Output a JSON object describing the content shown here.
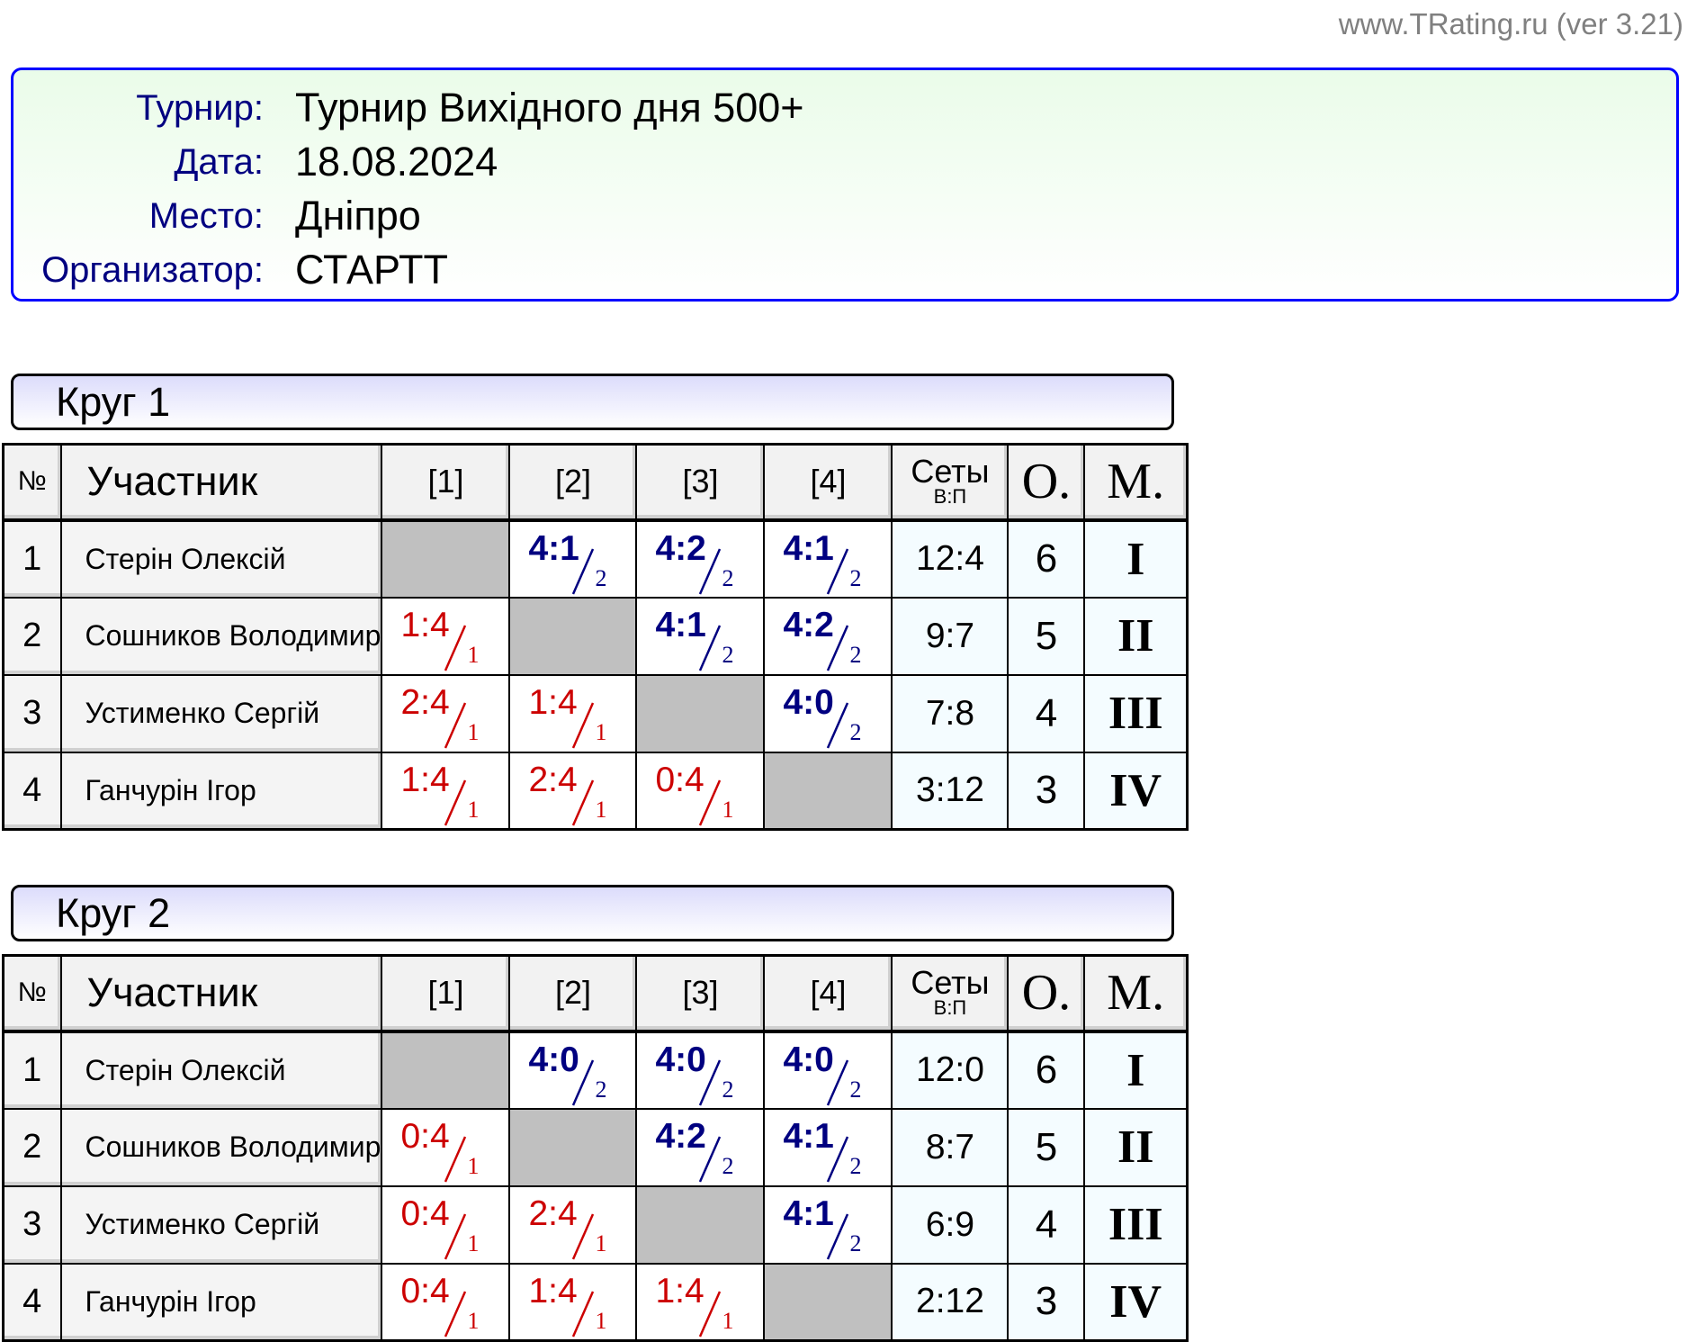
{
  "site": "www.TRating.ru (ver 3.21)",
  "info": [
    {
      "label": "Турнир:",
      "value": "Турнир Вихідного дня 500+"
    },
    {
      "label": "Дата:",
      "value": "18.08.2024"
    },
    {
      "label": "Место:",
      "value": "Дніпро"
    },
    {
      "label": "Организатор:",
      "value": "СТАРТТ"
    }
  ],
  "colors": {
    "win": "#000080",
    "loss": "#cc0000",
    "info_border": "#0000ff"
  },
  "headers": {
    "num": "№",
    "participant": "Участник",
    "cols": [
      "[1]",
      "[2]",
      "[3]",
      "[4]"
    ],
    "sets": "Сеты",
    "sets_sub": "В:П",
    "points": "О.",
    "place": "М."
  },
  "rounds": [
    {
      "title": "Круг 1",
      "rows": [
        {
          "num": "1",
          "name": "Стерін Олексій",
          "results": [
            null,
            {
              "score": "4:1",
              "pts": "2"
            },
            {
              "score": "4:2",
              "pts": "2"
            },
            {
              "score": "4:1",
              "pts": "2"
            }
          ],
          "sets": "12:4",
          "points": "6",
          "place": "I"
        },
        {
          "num": "2",
          "name": "Сошников Володимир",
          "results": [
            {
              "score": "1:4",
              "pts": "1"
            },
            null,
            {
              "score": "4:1",
              "pts": "2"
            },
            {
              "score": "4:2",
              "pts": "2"
            }
          ],
          "sets": "9:7",
          "points": "5",
          "place": "II"
        },
        {
          "num": "3",
          "name": "Устименко Сергій",
          "results": [
            {
              "score": "2:4",
              "pts": "1"
            },
            {
              "score": "1:4",
              "pts": "1"
            },
            null,
            {
              "score": "4:0",
              "pts": "2"
            }
          ],
          "sets": "7:8",
          "points": "4",
          "place": "III"
        },
        {
          "num": "4",
          "name": "Ганчурін Ігор",
          "results": [
            {
              "score": "1:4",
              "pts": "1"
            },
            {
              "score": "2:4",
              "pts": "1"
            },
            {
              "score": "0:4",
              "pts": "1"
            },
            null
          ],
          "sets": "3:12",
          "points": "3",
          "place": "IV"
        }
      ]
    },
    {
      "title": "Круг 2",
      "rows": [
        {
          "num": "1",
          "name": "Стерін Олексій",
          "results": [
            null,
            {
              "score": "4:0",
              "pts": "2"
            },
            {
              "score": "4:0",
              "pts": "2"
            },
            {
              "score": "4:0",
              "pts": "2"
            }
          ],
          "sets": "12:0",
          "points": "6",
          "place": "I"
        },
        {
          "num": "2",
          "name": "Сошников Володимир",
          "results": [
            {
              "score": "0:4",
              "pts": "1"
            },
            null,
            {
              "score": "4:2",
              "pts": "2"
            },
            {
              "score": "4:1",
              "pts": "2"
            }
          ],
          "sets": "8:7",
          "points": "5",
          "place": "II"
        },
        {
          "num": "3",
          "name": "Устименко Сергій",
          "results": [
            {
              "score": "0:4",
              "pts": "1"
            },
            {
              "score": "2:4",
              "pts": "1"
            },
            null,
            {
              "score": "4:1",
              "pts": "2"
            }
          ],
          "sets": "6:9",
          "points": "4",
          "place": "III"
        },
        {
          "num": "4",
          "name": "Ганчурін Ігор",
          "results": [
            {
              "score": "0:4",
              "pts": "1"
            },
            {
              "score": "1:4",
              "pts": "1"
            },
            {
              "score": "1:4",
              "pts": "1"
            },
            null
          ],
          "sets": "2:12",
          "points": "3",
          "place": "IV"
        }
      ]
    }
  ]
}
